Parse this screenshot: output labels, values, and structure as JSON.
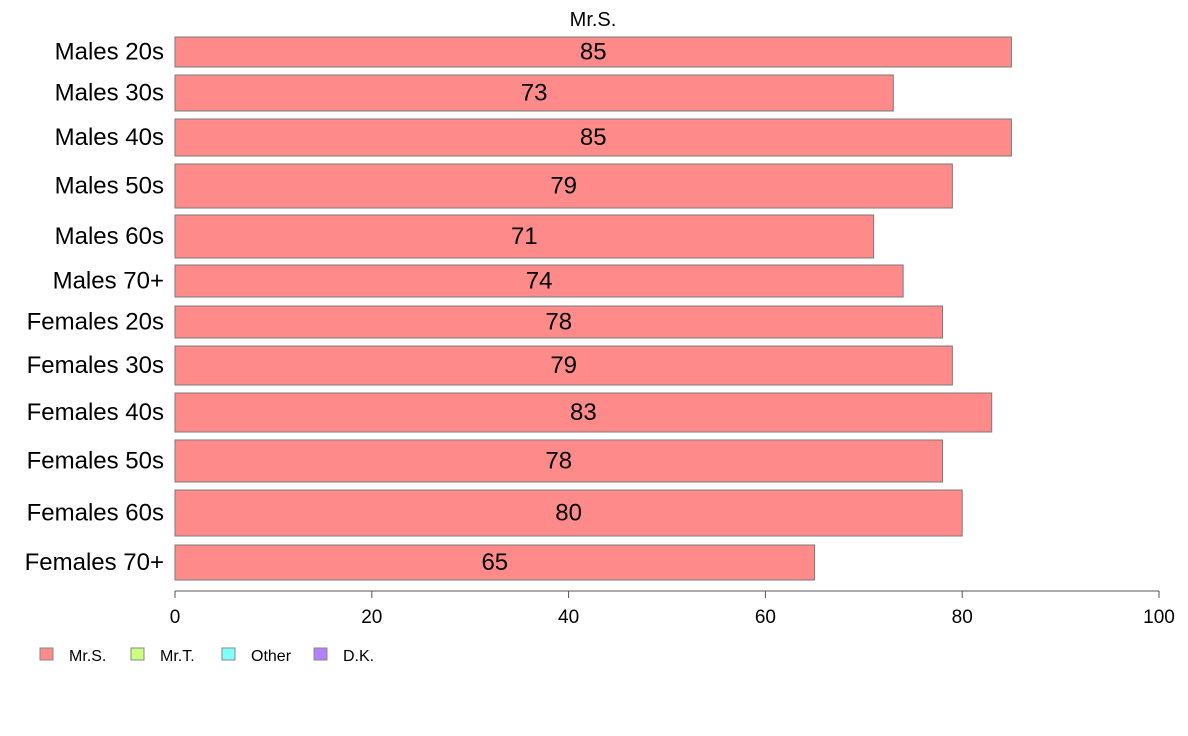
{
  "chart_data": {
    "type": "bar",
    "orientation": "horizontal",
    "title": "Mr.S.",
    "categories": [
      "Males 20s",
      "Males 30s",
      "Males 40s",
      "Males 50s",
      "Males 60s",
      "Males 70+",
      "Females 20s",
      "Females 30s",
      "Females 40s",
      "Females 50s",
      "Females 60s",
      "Females 70+"
    ],
    "series": [
      {
        "name": "Mr.S.",
        "color": "#ff8a8a",
        "values": [
          85,
          73,
          85,
          79,
          71,
          74,
          78,
          79,
          83,
          78,
          80,
          65
        ]
      }
    ],
    "xlim": [
      0,
      100
    ],
    "xticks": [
      0,
      20,
      40,
      60,
      80,
      100
    ],
    "grid": false,
    "legend": {
      "placement": "bottom-left",
      "items": [
        {
          "label": "Mr.S.",
          "color": "#ff8a8a"
        },
        {
          "label": "Mr.T.",
          "color": "#ccff80"
        },
        {
          "label": "Other",
          "color": "#80ffff"
        },
        {
          "label": "D.K.",
          "color": "#b380ff"
        }
      ]
    }
  }
}
